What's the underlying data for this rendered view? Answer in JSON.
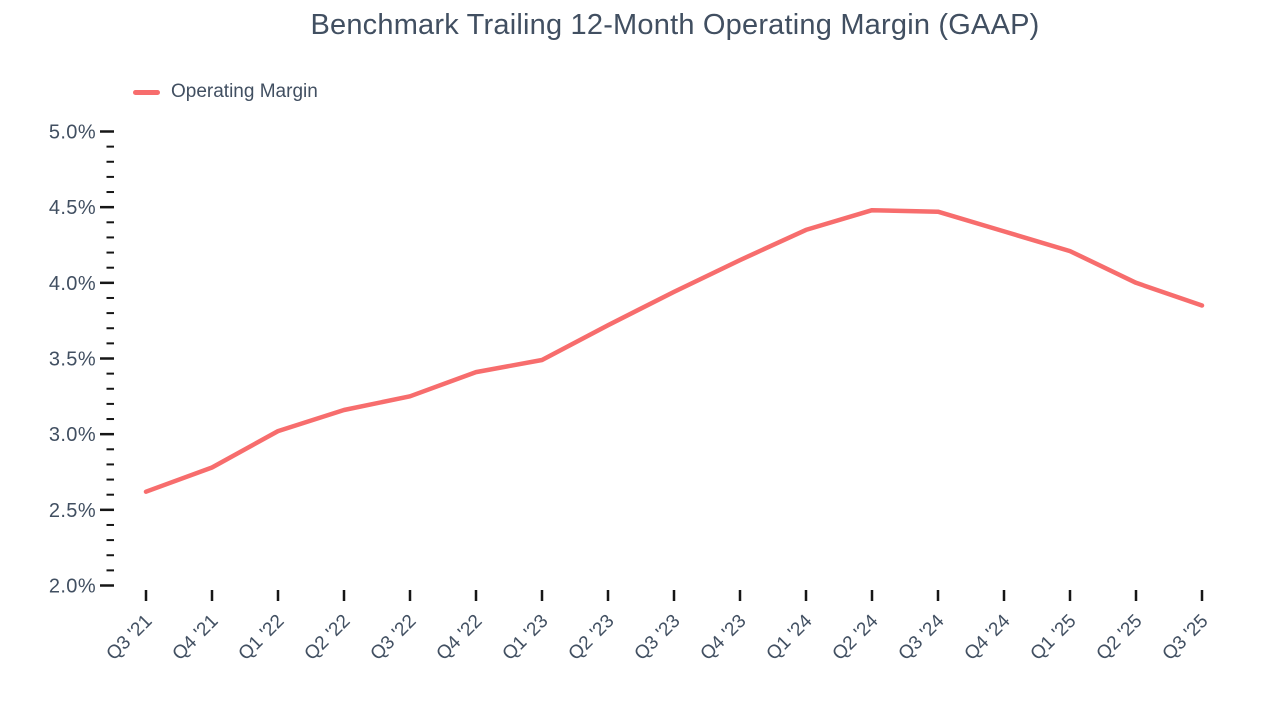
{
  "title": "Benchmark Trailing 12-Month Operating Margin (GAAP)",
  "legend": {
    "items": [
      {
        "label": "Operating Margin",
        "color": "#f76d6d"
      }
    ]
  },
  "colors": {
    "line": "#f76d6d",
    "text": "#414f61",
    "tick": "#161616",
    "background": "#ffffff"
  },
  "chart_data": {
    "type": "line",
    "title": "Benchmark Trailing 12-Month Operating Margin (GAAP)",
    "xlabel": "",
    "ylabel": "",
    "grid": false,
    "legend_position": "top-left",
    "categories": [
      "Q3 '21",
      "Q4 '21",
      "Q1 '22",
      "Q2 '22",
      "Q3 '22",
      "Q4 '22",
      "Q1 '23",
      "Q2 '23",
      "Q3 '23",
      "Q4 '23",
      "Q1 '24",
      "Q2 '24",
      "Q3 '24",
      "Q4 '24",
      "Q1 '25",
      "Q2 '25",
      "Q3 '25"
    ],
    "series": [
      {
        "name": "Operating Margin",
        "color": "#f76d6d",
        "values": [
          2.62,
          2.78,
          3.02,
          3.16,
          3.25,
          3.41,
          3.49,
          3.72,
          3.94,
          4.15,
          4.35,
          4.48,
          4.47,
          4.34,
          4.21,
          4.0,
          3.85
        ]
      }
    ],
    "y_axis": {
      "min": 2.0,
      "max": 5.0,
      "major_step": 0.5,
      "minor_step": 0.1,
      "tick_format": "percent_1dp",
      "tick_labels": [
        "5.0%",
        "4.5%",
        "4.0%",
        "3.5%",
        "3.0%",
        "2.5%",
        "2.0%"
      ]
    }
  }
}
